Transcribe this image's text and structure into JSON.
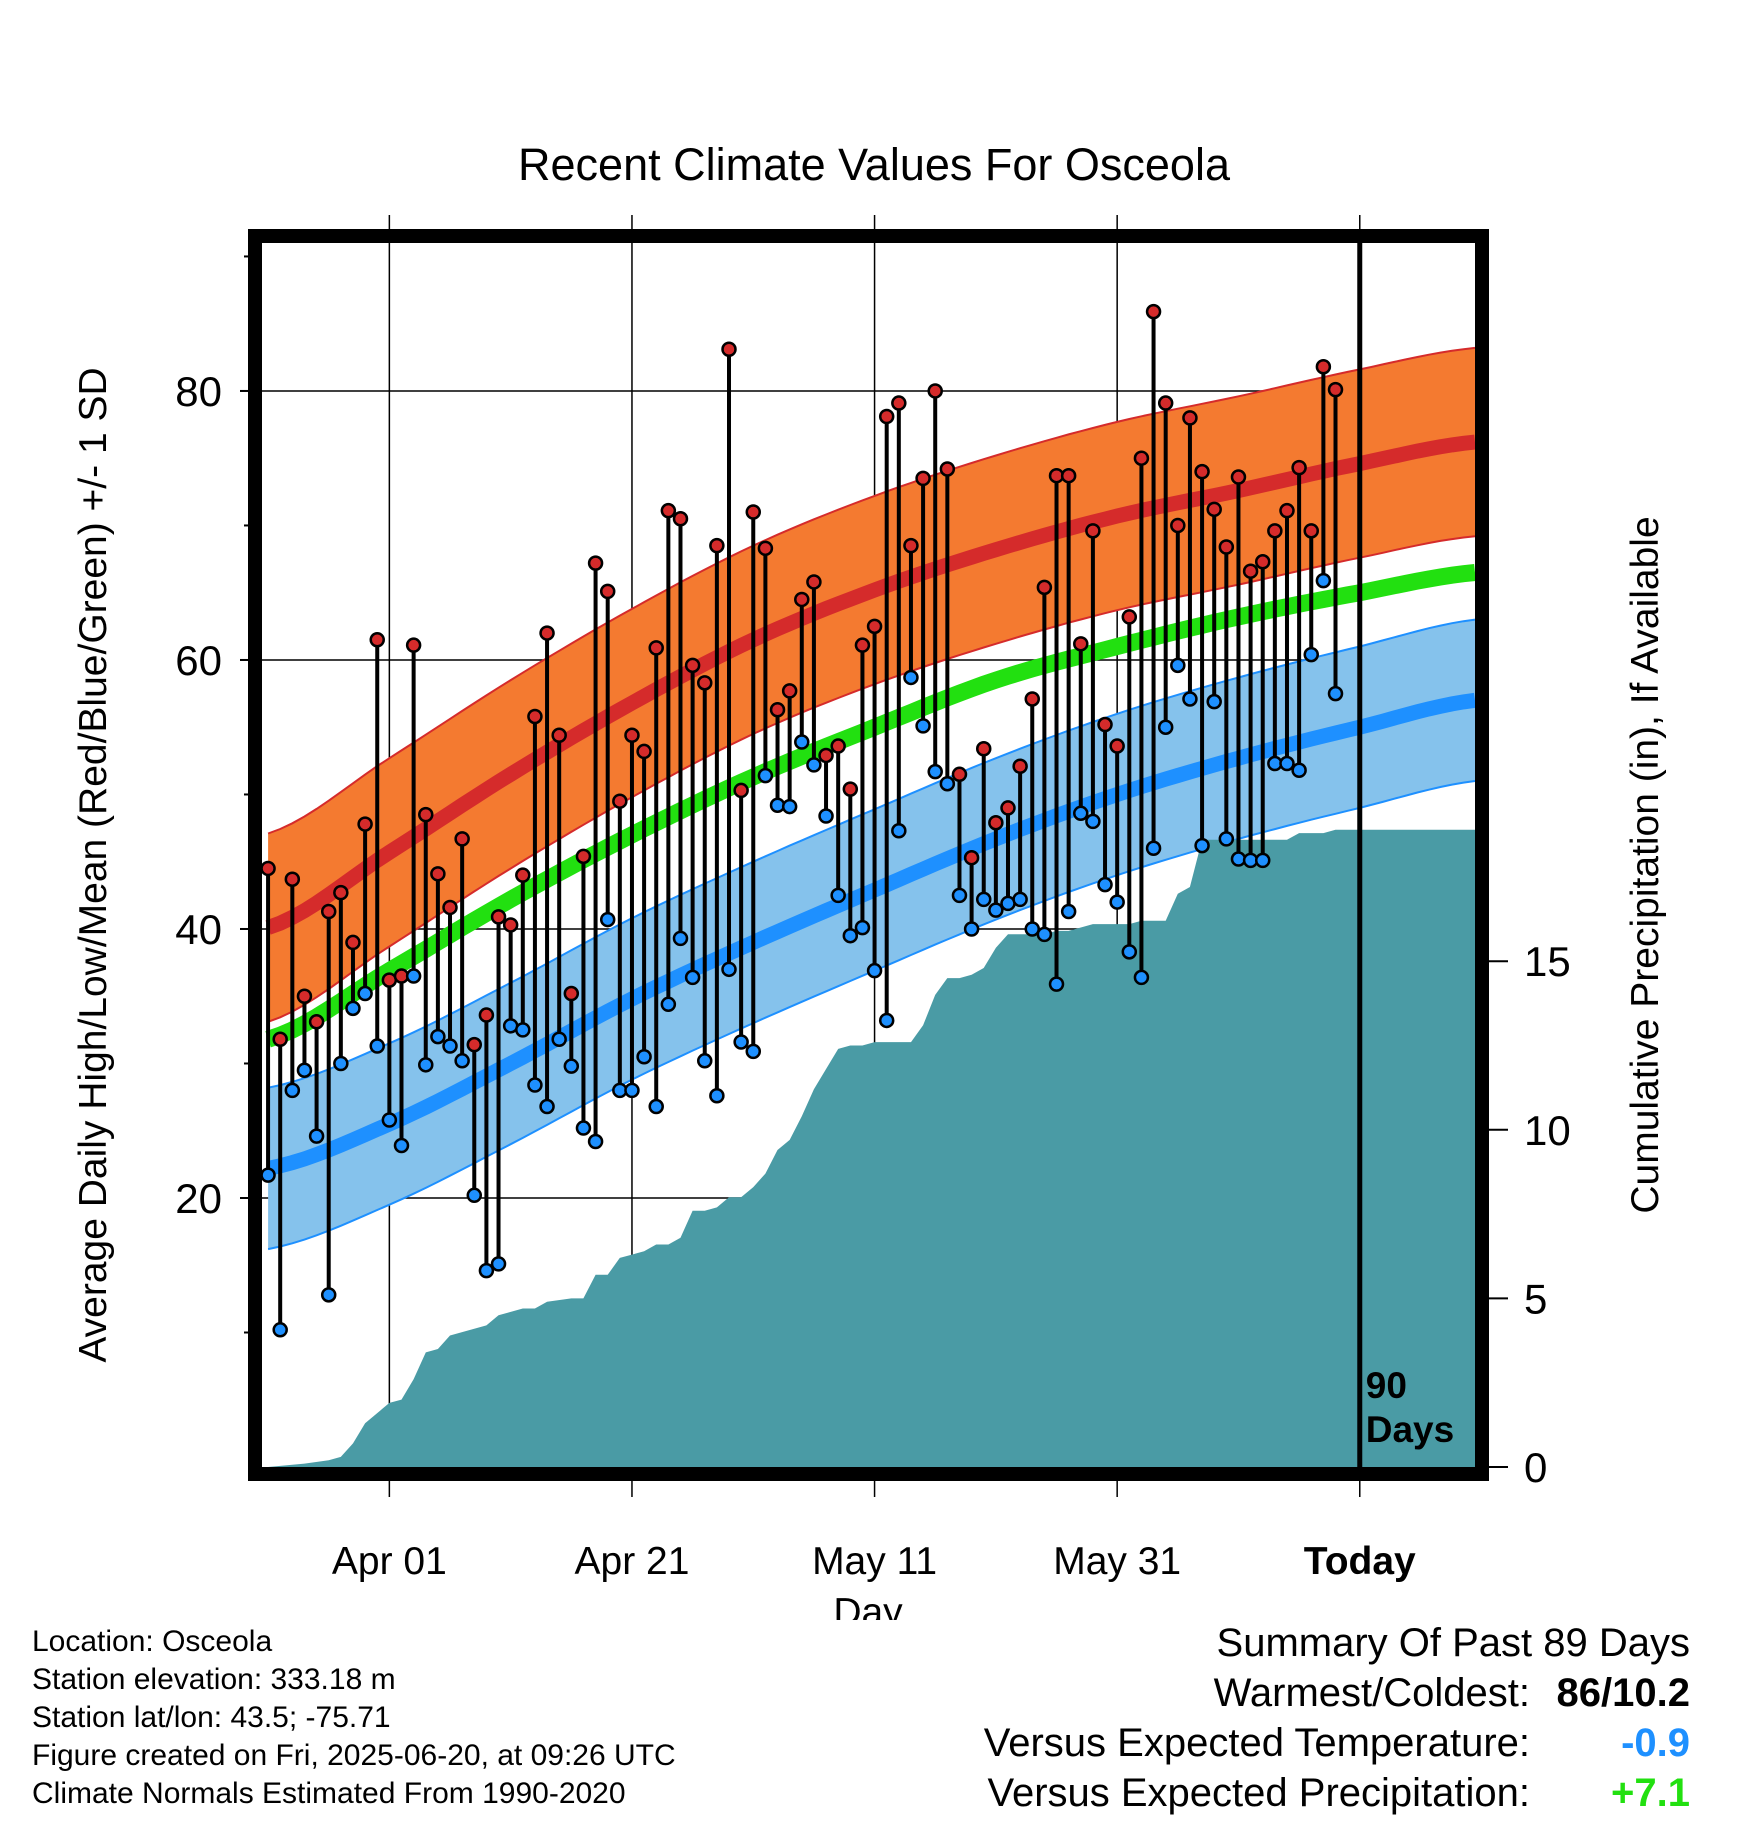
{
  "chart_data": {
    "type": "line",
    "title": "Recent Climate Values For Osceola",
    "xlabel": "Day",
    "ylabel": "Average Daily High/Low/Mean (Red/Blue/Green) +/- 1 SD",
    "y2label": "Cumulative Precipitation (in), If Available",
    "x_ticks": [
      "Apr 01",
      "Apr 21",
      "May 11",
      "May 31",
      "Today"
    ],
    "x_tick_days": [
      10,
      30,
      50,
      70,
      90
    ],
    "xlim": [
      -0.5,
      99.5
    ],
    "ylim": [
      0,
      91
    ],
    "y_ticks": [
      20,
      40,
      60,
      80
    ],
    "y2lim": [
      0,
      36.3
    ],
    "y2_ticks": [
      0,
      5,
      10,
      15
    ],
    "today_label": "90\nDays",
    "grid": true,
    "colors": {
      "high_band": "#F47A30",
      "high_mean": "#D52B2B",
      "low_band": "#85C2EC",
      "low_mean": "#1E90FF",
      "mean": "#22E010",
      "precip": "#4A9BA5",
      "high_dot": "#D52B2B",
      "low_dot": "#1E90FF"
    },
    "normal_high": {
      "days": [
        0,
        10,
        20,
        30,
        40,
        50,
        60,
        70,
        80,
        90,
        99.5
      ],
      "values": [
        40.1,
        45.7,
        51.5,
        56.8,
        61.5,
        65.2,
        68.2,
        70.7,
        72.6,
        74.6,
        76.2
      ]
    },
    "normal_high_sd": 7,
    "normal_low": {
      "days": [
        0,
        10,
        20,
        30,
        40,
        50,
        60,
        70,
        80,
        90,
        99.5
      ],
      "values": [
        22.2,
        25.5,
        30.0,
        34.8,
        39.0,
        42.9,
        46.7,
        50.0,
        52.7,
        55.0,
        57.0
      ]
    },
    "normal_low_sd": 6,
    "normal_mean": {
      "days": [
        0,
        10,
        20,
        30,
        40,
        50,
        60,
        70,
        80,
        90,
        99.5
      ],
      "values": [
        31.8,
        36.9,
        42.2,
        47.0,
        51.3,
        55.0,
        58.5,
        61.0,
        63.2,
        65.0,
        66.5
      ]
    },
    "daily": {
      "days": [
        0,
        1,
        2,
        3,
        4,
        5,
        6,
        7,
        8,
        9,
        10,
        11,
        12,
        13,
        14,
        15,
        16,
        17,
        18,
        19,
        20,
        21,
        22,
        23,
        24,
        25,
        26,
        27,
        28,
        29,
        30,
        31,
        32,
        33,
        34,
        35,
        36,
        37,
        38,
        39,
        40,
        41,
        42,
        43,
        44,
        45,
        46,
        47,
        48,
        49,
        50,
        51,
        52,
        53,
        54,
        55,
        56,
        57,
        58,
        59,
        60,
        61,
        62,
        63,
        64,
        65,
        66,
        67,
        68,
        69,
        70,
        71,
        72,
        73,
        74,
        75,
        76,
        77,
        78,
        79,
        80,
        81,
        82,
        83,
        84,
        85,
        86,
        87,
        88
      ],
      "high": [
        44.5,
        31.8,
        43.7,
        35.0,
        33.1,
        41.3,
        42.7,
        39.0,
        47.8,
        61.5,
        36.2,
        36.5,
        61.1,
        48.5,
        44.1,
        41.6,
        46.7,
        31.4,
        33.6,
        40.9,
        40.3,
        44.0,
        55.8,
        62.0,
        54.4,
        35.2,
        45.4,
        67.2,
        65.1,
        49.5,
        54.4,
        53.2,
        60.9,
        71.1,
        70.5,
        59.6,
        58.3,
        68.5,
        83.1,
        50.3,
        71.0,
        68.3,
        56.3,
        57.7,
        64.5,
        65.8,
        52.9,
        53.6,
        50.4,
        61.1,
        62.5,
        78.1,
        79.1,
        68.5,
        73.5,
        80.0,
        74.2,
        51.5,
        45.3,
        53.4,
        47.9,
        49.0,
        52.1,
        57.1,
        65.4,
        73.7,
        73.7,
        61.2,
        69.6,
        55.2,
        53.6,
        63.2,
        75.0,
        85.9,
        79.1,
        70.0,
        78.0,
        74.0,
        71.2,
        68.4,
        73.6,
        66.6,
        67.3,
        69.6,
        71.1,
        74.3,
        69.6,
        81.8,
        80.1
      ],
      "low": [
        21.7,
        10.2,
        28.0,
        29.5,
        24.6,
        12.8,
        30.0,
        34.1,
        35.2,
        31.3,
        25.8,
        23.9,
        36.5,
        29.9,
        32.0,
        31.3,
        30.2,
        20.2,
        14.6,
        15.1,
        32.8,
        32.5,
        28.4,
        26.8,
        31.8,
        29.8,
        25.2,
        24.2,
        40.7,
        28.0,
        28.0,
        30.5,
        26.8,
        34.4,
        39.3,
        36.4,
        30.2,
        27.6,
        37.0,
        31.6,
        30.9,
        51.4,
        49.2,
        49.1,
        53.9,
        52.2,
        48.4,
        42.5,
        39.5,
        40.1,
        36.9,
        33.2,
        47.3,
        58.7,
        55.1,
        51.7,
        50.8,
        42.5,
        40.0,
        42.2,
        41.4,
        41.9,
        42.2,
        40.0,
        39.6,
        35.9,
        41.3,
        48.6,
        48.0,
        43.3,
        42.0,
        38.3,
        36.4,
        46.0,
        55.0,
        59.6,
        57.1,
        46.2,
        56.9,
        46.7,
        45.2,
        45.1,
        45.1,
        52.3,
        52.3,
        51.8,
        60.4,
        65.9,
        57.5
      ]
    },
    "precip_cumulative": {
      "days": [
        0,
        3,
        5,
        6,
        7,
        8,
        10,
        11,
        12,
        13,
        14,
        15,
        16,
        18,
        19,
        20,
        21,
        22,
        23,
        25,
        26,
        27,
        28,
        29,
        30,
        31,
        32,
        33,
        34,
        35,
        36,
        37,
        38,
        39,
        40,
        41,
        42,
        43,
        44,
        45,
        46,
        47,
        48,
        49,
        50,
        51,
        52,
        53,
        54,
        55,
        56,
        57,
        58,
        59,
        60,
        61,
        62,
        63,
        64,
        65,
        66,
        67,
        68,
        69,
        70,
        71,
        72,
        73,
        74,
        75,
        76,
        77,
        78,
        79,
        80,
        81,
        82,
        83,
        84,
        85,
        86,
        87,
        88,
        89,
        90,
        99.5
      ],
      "values": [
        0,
        0.1,
        0.2,
        0.3,
        0.7,
        1.3,
        1.9,
        2.0,
        2.6,
        3.4,
        3.5,
        3.9,
        4.0,
        4.2,
        4.5,
        4.6,
        4.7,
        4.7,
        4.9,
        5.0,
        5.0,
        5.7,
        5.7,
        6.2,
        6.3,
        6.4,
        6.6,
        6.6,
        6.8,
        7.6,
        7.6,
        7.7,
        8.0,
        8.0,
        8.3,
        8.7,
        9.4,
        9.7,
        10.4,
        11.2,
        11.8,
        12.4,
        12.5,
        12.5,
        12.6,
        12.6,
        12.6,
        12.6,
        13.1,
        14.0,
        14.5,
        14.5,
        14.6,
        14.8,
        15.4,
        15.8,
        15.8,
        15.8,
        15.8,
        15.9,
        15.9,
        16.0,
        16.1,
        16.1,
        16.1,
        16.1,
        16.2,
        16.2,
        16.2,
        17.0,
        17.2,
        18.6,
        18.6,
        18.6,
        18.6,
        18.6,
        18.6,
        18.6,
        18.6,
        18.8,
        18.8,
        18.8,
        18.9,
        18.9,
        18.9,
        18.9
      ]
    }
  },
  "info": {
    "location": "Location: Osceola",
    "elevation": "Station elevation: 333.18 m",
    "latlon": "Station lat/lon: 43.5; -75.71",
    "created": "Figure created on Fri, 2025-06-20, at 09:26 UTC",
    "normals": "Climate Normals Estimated From 1990-2020"
  },
  "summary": {
    "title": "Summary Of Past 89 Days",
    "warm_cold_label": "Warmest/Coldest:",
    "warm_cold_value": "86/10.2",
    "temp_label": "Versus Expected Temperature:",
    "temp_value": "-0.9",
    "temp_color": "#1E90FF",
    "precip_label": "Versus Expected Precipitation:",
    "precip_value": "+7.1",
    "precip_color": "#22E010"
  }
}
